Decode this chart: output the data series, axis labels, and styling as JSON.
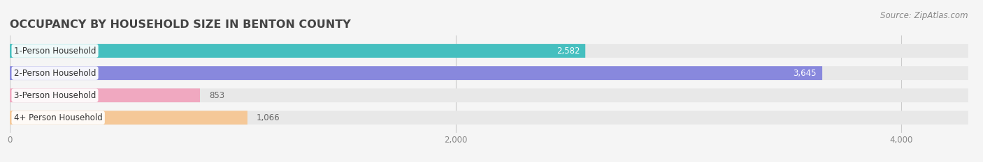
{
  "title": "OCCUPANCY BY HOUSEHOLD SIZE IN BENTON COUNTY",
  "source": "Source: ZipAtlas.com",
  "categories": [
    "1-Person Household",
    "2-Person Household",
    "3-Person Household",
    "4+ Person Household"
  ],
  "values": [
    2582,
    3645,
    853,
    1066
  ],
  "bar_colors": [
    "#45bfbf",
    "#8888dd",
    "#f0a8c0",
    "#f5c898"
  ],
  "xlim": [
    0,
    4300
  ],
  "xticks": [
    0,
    2000,
    4000
  ],
  "xtick_labels": [
    "0",
    "2,000",
    "4,000"
  ],
  "title_fontsize": 11.5,
  "label_fontsize": 8.5,
  "value_fontsize": 8.5,
  "source_fontsize": 8.5,
  "background_color": "#f5f5f5",
  "bg_bar_color": "#e8e8e8",
  "bar_height": 0.62,
  "value_threshold": 1500
}
